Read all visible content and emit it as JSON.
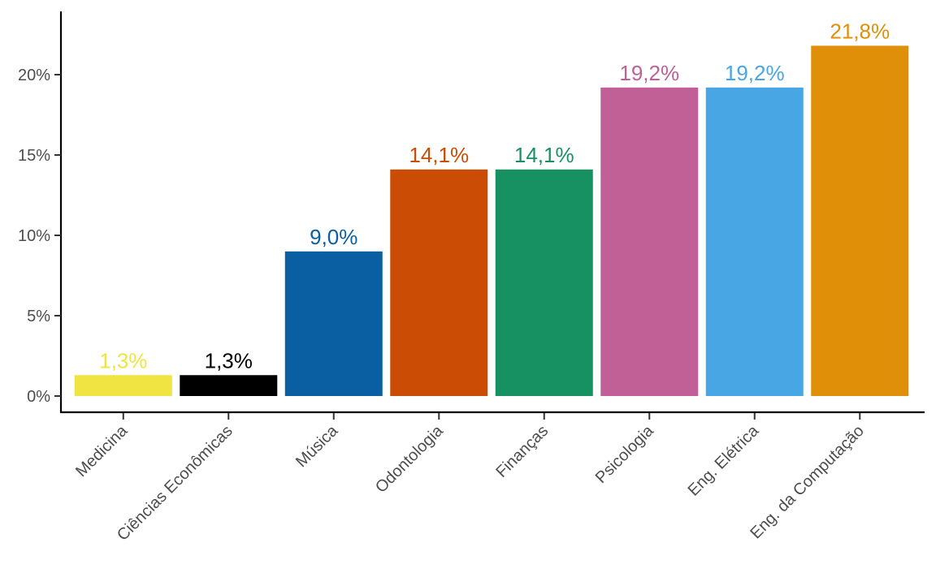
{
  "chart_data": {
    "type": "bar",
    "categories": [
      "Medicina",
      "Ciências Econômicas",
      "Música",
      "Odontologia",
      "Finanças",
      "Psicologia",
      "Eng. Elétrica",
      "Eng. da Computação"
    ],
    "values": [
      1.3,
      1.3,
      9.0,
      14.1,
      14.1,
      19.2,
      19.2,
      21.8
    ],
    "data_labels": [
      "1,3%",
      "1,3%",
      "9,0%",
      "14,1%",
      "14,1%",
      "19,2%",
      "19,2%",
      "21,8%"
    ],
    "colors": [
      "#F0E442",
      "#000000",
      "#0A5FA3",
      "#CB4C04",
      "#179162",
      "#C06096",
      "#49A6E4",
      "#E09008"
    ],
    "yticks": [
      0,
      5,
      10,
      15,
      20
    ],
    "ytick_labels": [
      "0%",
      "5%",
      "10%",
      "15%",
      "20%"
    ],
    "ylim": [
      0,
      22.5
    ],
    "title": "",
    "xlabel": "",
    "ylabel": "",
    "grid": false,
    "legend": "none"
  }
}
